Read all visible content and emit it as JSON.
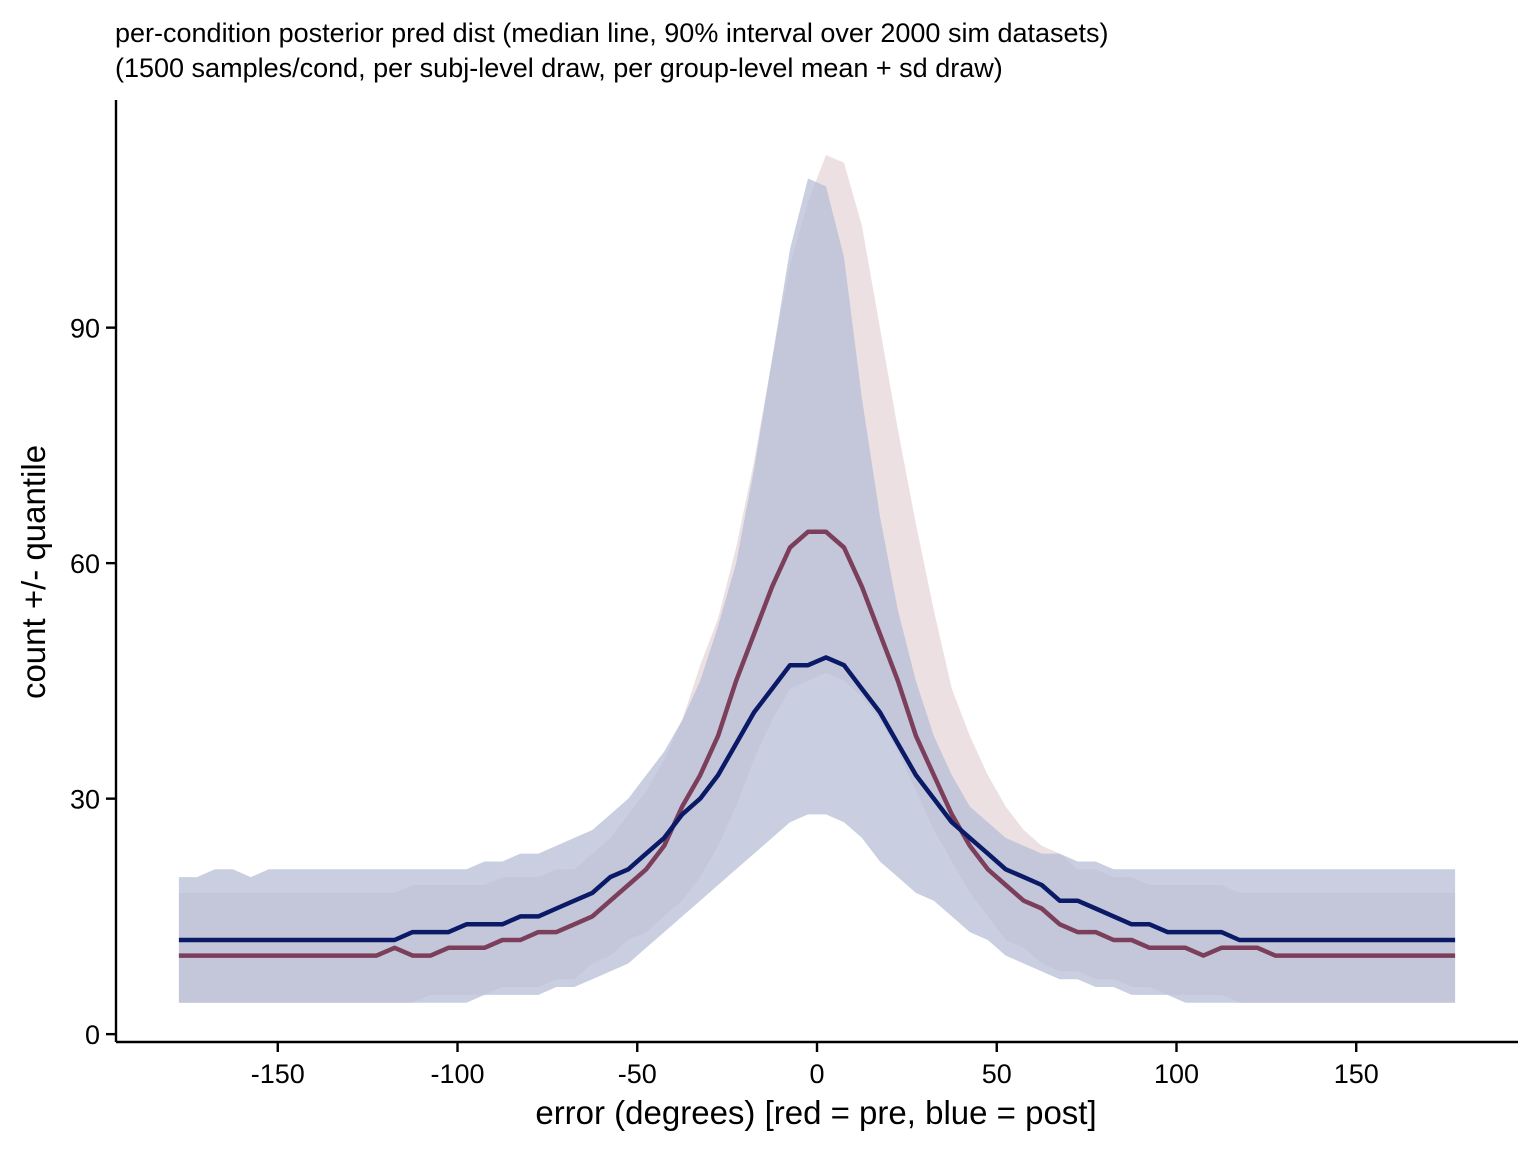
{
  "chart_data": {
    "type": "area",
    "title": "per-condition posterior pred dist (median line, 90% interval over 2000 sim datasets)",
    "subtitle": "(1500 samples/cond, per subj-level draw, per group-level mean + sd draw)",
    "xlabel": "error (degrees) [red = pre, blue = post]",
    "ylabel": "count +/- quantile",
    "xlim": [
      -195,
      195
    ],
    "ylim": [
      -1,
      119
    ],
    "xticks": [
      -150,
      -100,
      -50,
      0,
      50,
      100,
      150
    ],
    "yticks": [
      0,
      30,
      60,
      90
    ],
    "grid": false,
    "legend": "none",
    "x": [
      -177.5,
      -172.5,
      -167.5,
      -162.5,
      -157.5,
      -152.5,
      -147.5,
      -142.5,
      -137.5,
      -132.5,
      -127.5,
      -122.5,
      -117.5,
      -112.5,
      -107.5,
      -102.5,
      -97.5,
      -92.5,
      -87.5,
      -82.5,
      -77.5,
      -72.5,
      -67.5,
      -62.5,
      -57.5,
      -52.5,
      -47.5,
      -42.5,
      -37.5,
      -32.5,
      -27.5,
      -22.5,
      -17.5,
      -12.5,
      -7.5,
      -2.5,
      2.5,
      7.5,
      12.5,
      17.5,
      22.5,
      27.5,
      32.5,
      37.5,
      42.5,
      47.5,
      52.5,
      57.5,
      62.5,
      67.5,
      72.5,
      77.5,
      82.5,
      87.5,
      92.5,
      97.5,
      102.5,
      107.5,
      112.5,
      117.5,
      122.5,
      127.5,
      132.5,
      137.5,
      142.5,
      147.5,
      152.5,
      157.5,
      162.5,
      167.5,
      172.5,
      177.5
    ],
    "series": [
      {
        "name": "pre",
        "color": "#7b3f5c",
        "band_color": "#e6d5da",
        "median": [
          10,
          10,
          10,
          10,
          10,
          10,
          10,
          10,
          10,
          10,
          10,
          10,
          11,
          10,
          10,
          11,
          11,
          11,
          12,
          12,
          13,
          13,
          14,
          15,
          17,
          19,
          21,
          24,
          29,
          33,
          38,
          45,
          51,
          57,
          62,
          64,
          64,
          62,
          57,
          51,
          45,
          38,
          33,
          28,
          24,
          21,
          19,
          17,
          16,
          14,
          13,
          13,
          12,
          12,
          11,
          11,
          11,
          10,
          11,
          11,
          11,
          10,
          10,
          10,
          10,
          10,
          10,
          10,
          10,
          10,
          10,
          10
        ],
        "lower": [
          4,
          4,
          4,
          4,
          4,
          4,
          4,
          4,
          4,
          4,
          4,
          4,
          4,
          4,
          5,
          5,
          5,
          5,
          6,
          6,
          6,
          7,
          7,
          9,
          10,
          12,
          13,
          15,
          17,
          20,
          24,
          29,
          35,
          40,
          44,
          45,
          46,
          45,
          43,
          40,
          36,
          31,
          26,
          22,
          18,
          15,
          12,
          11,
          9,
          8,
          8,
          7,
          7,
          6,
          6,
          5,
          5,
          5,
          5,
          4,
          4,
          4,
          4,
          4,
          4,
          4,
          4,
          4,
          4,
          4,
          4,
          4
        ],
        "upper": [
          18,
          18,
          18,
          18,
          18,
          18,
          18,
          18,
          18,
          18,
          18,
          18,
          18,
          19,
          19,
          19,
          19,
          19,
          20,
          20,
          20,
          21,
          21,
          23,
          25,
          28,
          31,
          35,
          40,
          47,
          53,
          62,
          73,
          86,
          98,
          106,
          112,
          111,
          103,
          90,
          77,
          65,
          54,
          44,
          38,
          33,
          29,
          26,
          24,
          23,
          21,
          21,
          20,
          20,
          19,
          19,
          19,
          19,
          19,
          18,
          18,
          18,
          18,
          18,
          18,
          18,
          18,
          18,
          18,
          18,
          18,
          18
        ]
      },
      {
        "name": "post",
        "color": "#0a1a66",
        "band_color": "#b7bfd7",
        "median": [
          12,
          12,
          12,
          12,
          12,
          12,
          12,
          12,
          12,
          12,
          12,
          12,
          12,
          13,
          13,
          13,
          14,
          14,
          14,
          15,
          15,
          16,
          17,
          18,
          20,
          21,
          23,
          25,
          28,
          30,
          33,
          37,
          41,
          44,
          47,
          47,
          48,
          47,
          44,
          41,
          37,
          33,
          30,
          27,
          25,
          23,
          21,
          20,
          19,
          17,
          17,
          16,
          15,
          14,
          14,
          13,
          13,
          13,
          13,
          12,
          12,
          12,
          12,
          12,
          12,
          12,
          12,
          12,
          12,
          12,
          12,
          12
        ],
        "lower": [
          4,
          4,
          4,
          4,
          4,
          4,
          4,
          4,
          4,
          4,
          4,
          4,
          4,
          4,
          4,
          4,
          4,
          5,
          5,
          5,
          5,
          6,
          6,
          7,
          8,
          9,
          11,
          13,
          15,
          17,
          19,
          21,
          23,
          25,
          27,
          28,
          28,
          27,
          25,
          22,
          20,
          18,
          17,
          15,
          13,
          12,
          10,
          9,
          8,
          7,
          7,
          6,
          6,
          5,
          5,
          5,
          4,
          4,
          4,
          4,
          4,
          4,
          4,
          4,
          4,
          4,
          4,
          4,
          4,
          4,
          4,
          4
        ],
        "upper": [
          20,
          20,
          21,
          21,
          20,
          21,
          21,
          21,
          21,
          21,
          21,
          21,
          21,
          21,
          21,
          21,
          21,
          22,
          22,
          23,
          23,
          24,
          25,
          26,
          28,
          30,
          33,
          36,
          40,
          45,
          52,
          60,
          72,
          86,
          100,
          109,
          108,
          99,
          81,
          66,
          54,
          45,
          38,
          33,
          29,
          27,
          25,
          24,
          23,
          23,
          22,
          22,
          21,
          21,
          21,
          21,
          21,
          21,
          21,
          21,
          21,
          21,
          21,
          21,
          21,
          21,
          21,
          21,
          21,
          21,
          21,
          21
        ]
      }
    ]
  }
}
